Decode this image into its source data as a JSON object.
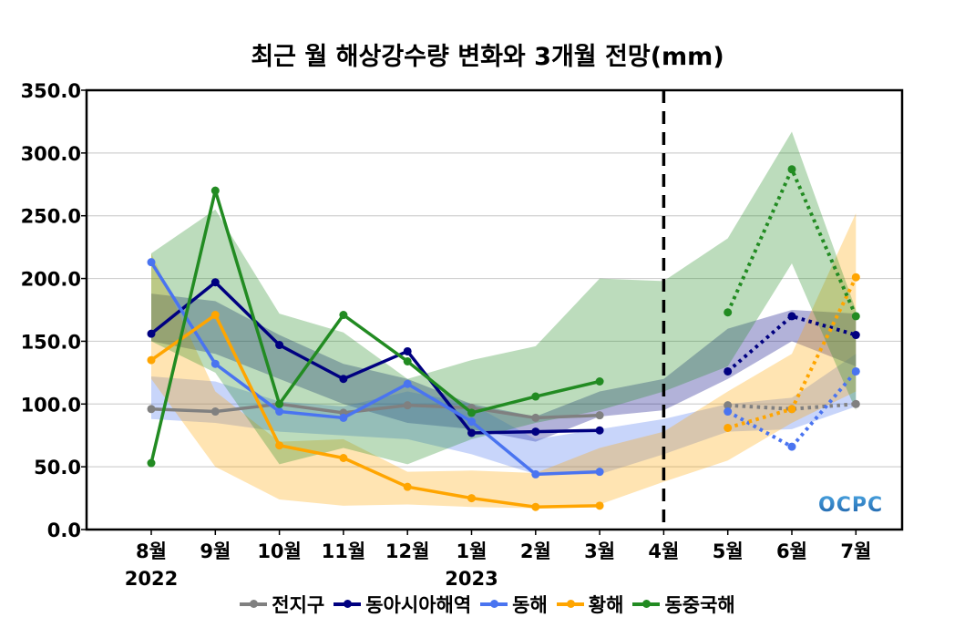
{
  "chart_data": {
    "type": "line",
    "title": "최근 월 해상강수량 변화와 3개월 전망(mm)",
    "xlabel": "",
    "ylabel": "",
    "ylim": [
      0,
      350
    ],
    "yticks": [
      "0.0",
      "50.0",
      "100.0",
      "150.0",
      "200.0",
      "250.0",
      "300.0",
      "350.0"
    ],
    "categories": [
      "8월",
      "9월",
      "10월",
      "11월",
      "12월",
      "1월",
      "2월",
      "3월",
      "4월",
      "5월",
      "6월",
      "7월"
    ],
    "year_labels": [
      {
        "index": 0,
        "label": "2022"
      },
      {
        "index": 5,
        "label": "2023"
      }
    ],
    "forecast_divider_category": "4월",
    "grid": "horizontal",
    "legend_position": "bottom",
    "watermark": "OCPC",
    "series": [
      {
        "name": "전지구",
        "color": "#808080",
        "observed": [
          96,
          94,
          100,
          93,
          99,
          97,
          89,
          91
        ],
        "forecast": [
          99,
          96,
          100
        ],
        "band_lower": [
          null,
          null,
          null,
          null,
          null,
          null,
          null,
          null,
          null,
          null,
          null,
          null
        ],
        "band_upper": [
          null,
          null,
          null,
          null,
          null,
          null,
          null,
          null,
          null,
          null,
          null,
          null
        ]
      },
      {
        "name": "동아시아해역",
        "color": "#000080",
        "observed": [
          156,
          197,
          147,
          120,
          142,
          77,
          78,
          79
        ],
        "forecast": [
          126,
          170,
          155
        ],
        "band_lower": [
          150,
          140,
          120,
          100,
          85,
          80,
          70,
          90,
          95,
          120,
          150,
          130
        ],
        "band_upper": [
          188,
          182,
          155,
          132,
          120,
          100,
          90,
          110,
          120,
          160,
          175,
          172
        ]
      },
      {
        "name": "동해",
        "color": "#4a74f0",
        "observed": [
          213,
          132,
          94,
          89,
          116,
          86,
          44,
          46
        ],
        "forecast": [
          94,
          66,
          126
        ],
        "band_lower": [
          88,
          85,
          78,
          75,
          72,
          60,
          44,
          44,
          60,
          78,
          80,
          98
        ],
        "band_upper": [
          122,
          118,
          102,
          98,
          110,
          100,
          72,
          80,
          88,
          100,
          105,
          140
        ]
      },
      {
        "name": "황해",
        "color": "#ffa500",
        "observed": [
          135,
          171,
          67,
          57,
          34,
          25,
          18,
          19
        ],
        "forecast": [
          81,
          96,
          201
        ],
        "band_lower": [
          120,
          50,
          24,
          19,
          20,
          18,
          17,
          20,
          38,
          55,
          85,
          110
        ],
        "band_upper": [
          220,
          110,
          70,
          72,
          46,
          47,
          45,
          65,
          78,
          110,
          140,
          252
        ]
      },
      {
        "name": "동중국해",
        "color": "#228b22",
        "observed": [
          53,
          270,
          100,
          171,
          134,
          93,
          106,
          118
        ],
        "forecast": [
          173,
          287,
          170
        ],
        "band_lower": [
          150,
          125,
          52,
          65,
          52,
          72,
          85,
          95,
          110,
          130,
          212,
          95
        ],
        "band_upper": [
          220,
          255,
          172,
          157,
          120,
          135,
          146,
          200,
          198,
          232,
          317,
          175
        ]
      }
    ]
  }
}
